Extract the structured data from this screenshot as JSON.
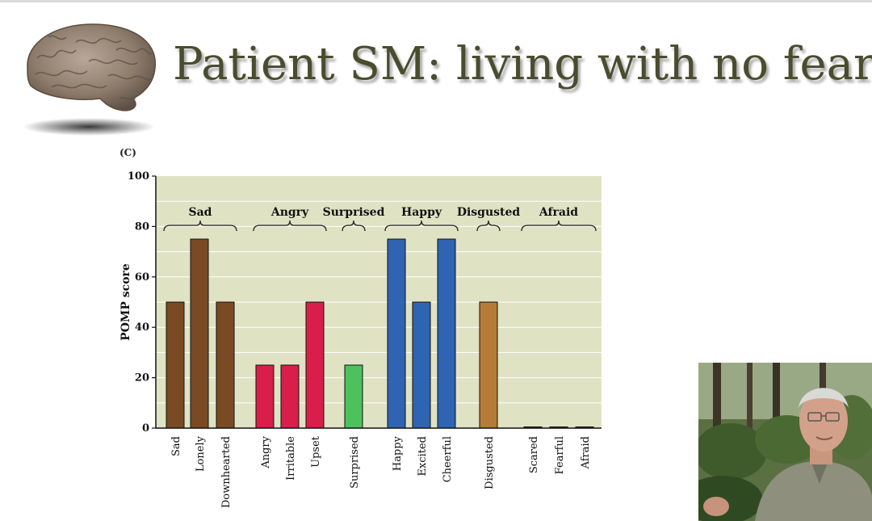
{
  "slide": {
    "title": "Patient SM: living with no fear"
  },
  "figure": {
    "panel_label": "(C)"
  },
  "chart_data": {
    "type": "bar",
    "ylabel": "POMP score",
    "ylim": [
      0,
      100
    ],
    "yticks": [
      0,
      20,
      40,
      60,
      80,
      100
    ],
    "grid": true,
    "background": "#dfe3c4",
    "categories": [
      "Sad",
      "Lonely",
      "Downhearted",
      "Angry",
      "Irritable",
      "Upset",
      "Surprised",
      "Happy",
      "Excited",
      "Cheerful",
      "Disgusted",
      "Scared",
      "Fearful",
      "Afraid"
    ],
    "values": [
      50,
      75,
      50,
      25,
      25,
      50,
      25,
      75,
      50,
      75,
      50,
      0,
      0,
      0
    ],
    "groups": [
      {
        "name": "Sad",
        "members": [
          "Sad",
          "Lonely",
          "Downhearted"
        ],
        "color": "#7a4a24"
      },
      {
        "name": "Angry",
        "members": [
          "Angry",
          "Irritable",
          "Upset"
        ],
        "color": "#d81e4a"
      },
      {
        "name": "Surprised",
        "members": [
          "Surprised"
        ],
        "color": "#4cc15e"
      },
      {
        "name": "Happy",
        "members": [
          "Happy",
          "Excited",
          "Cheerful"
        ],
        "color": "#2f64b2"
      },
      {
        "name": "Disgusted",
        "members": [
          "Disgusted"
        ],
        "color": "#b57b37"
      },
      {
        "name": "Afraid",
        "members": [
          "Scared",
          "Fearful",
          "Afraid"
        ],
        "color": "#6b3c20"
      }
    ]
  }
}
